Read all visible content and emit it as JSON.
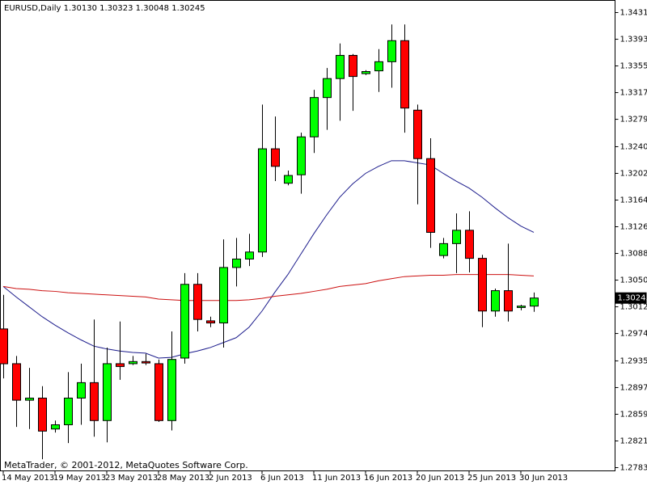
{
  "chart_data": {
    "type": "candlestick",
    "title": "EURUSD,Daily  1.30130 1.30323 1.30048 1.30245",
    "annotation": "MetaTrader, © 2001-2012, MetaQuotes Software Corp.",
    "categories": [
      "14 May 2013",
      null,
      null,
      null,
      "19 May 2013",
      null,
      null,
      null,
      "23 May 2013",
      null,
      null,
      null,
      "28 May 2013",
      null,
      null,
      null,
      "2 Jun 2013",
      null,
      null,
      null,
      "6 Jun 2013",
      null,
      null,
      null,
      "11 Jun 2013",
      null,
      null,
      null,
      "16 Jun 2013",
      null,
      null,
      null,
      "20 Jun 2013",
      null,
      null,
      null,
      "25 Jun 2013",
      null,
      null,
      null,
      "30 Jun 2013",
      null
    ],
    "open": [
      1.29805,
      1.2931,
      1.2879,
      1.2882,
      1.2838,
      1.2844,
      1.2882,
      1.2904,
      1.285,
      1.2931,
      1.2931,
      1.2934,
      1.2931,
      1.285,
      1.2939,
      1.3044,
      1.2992,
      1.2989,
      1.3068,
      1.308,
      1.309,
      1.3237,
      1.3188,
      1.32,
      1.3254,
      1.331,
      1.3337,
      1.337,
      1.3344,
      1.3348,
      1.3361,
      1.3391,
      1.3292,
      1.3223,
      1.3085,
      1.3102,
      1.3121,
      1.3081,
      1.3006,
      1.3035,
      1.3011,
      1.3013
    ],
    "high": [
      1.3029,
      1.2942,
      1.2925,
      1.2899,
      1.285,
      1.2919,
      1.2931,
      1.2994,
      1.2954,
      1.2991,
      1.2942,
      1.2945,
      1.2937,
      1.2977,
      1.306,
      1.306,
      1.2998,
      1.3108,
      1.311,
      1.3116,
      1.33,
      1.3283,
      1.3206,
      1.326,
      1.3321,
      1.3352,
      1.3387,
      1.3372,
      1.3349,
      1.3379,
      1.3414,
      1.3414,
      1.33,
      1.3252,
      1.311,
      1.3145,
      1.3148,
      1.3086,
      1.3038,
      1.3102,
      1.3015,
      1.30323
    ],
    "low": [
      1.291,
      1.2841,
      1.2838,
      1.2795,
      1.2833,
      1.2818,
      1.2844,
      1.2827,
      1.2819,
      1.2908,
      1.2929,
      1.2929,
      1.2848,
      1.2836,
      1.2931,
      1.2977,
      1.2983,
      1.2954,
      1.3041,
      1.307,
      1.3083,
      1.3191,
      1.3185,
      1.3173,
      1.3231,
      1.3264,
      1.3277,
      1.3291,
      1.3342,
      1.3318,
      1.3324,
      1.326,
      1.3158,
      1.3096,
      1.3081,
      1.306,
      1.3061,
      1.2983,
      1.2998,
      1.2991,
      1.3007,
      1.30048
    ],
    "close": [
      1.29309,
      1.2879,
      1.2882,
      1.2835,
      1.2844,
      1.2882,
      1.2904,
      1.285,
      1.2931,
      1.2927,
      1.2934,
      1.2932,
      1.285,
      1.2937,
      1.3044,
      1.2994,
      1.2989,
      1.3068,
      1.308,
      1.309,
      1.3237,
      1.3212,
      1.3199,
      1.3254,
      1.331,
      1.3337,
      1.337,
      1.334,
      1.3347,
      1.3361,
      1.3391,
      1.3295,
      1.3223,
      1.3118,
      1.3102,
      1.3121,
      1.3081,
      1.3006,
      1.3035,
      1.3006,
      1.3013,
      1.30245
    ],
    "up_color": "#00ff00",
    "down_color": "#ff0000",
    "lines": [
      {
        "color": "#1c1c8c",
        "values": [
          1.3041,
          1.3026,
          1.3012,
          1.2998,
          1.2986,
          1.2975,
          1.2965,
          1.2956,
          1.2952,
          1.2949,
          1.2947,
          1.2946,
          1.2939,
          1.294,
          1.2945,
          1.2949,
          1.2954,
          1.2961,
          1.2968,
          1.2983,
          1.3006,
          1.3033,
          1.3058,
          1.3087,
          1.3116,
          1.3143,
          1.3168,
          1.3187,
          1.3202,
          1.3212,
          1.322,
          1.322,
          1.3217,
          1.3214,
          1.3202,
          1.3191,
          1.3181,
          1.3168,
          1.3153,
          1.3139,
          1.3127,
          1.3118
        ]
      },
      {
        "color": "#cc1010",
        "values": [
          1.3041,
          1.3038,
          1.3037,
          1.3035,
          1.3034,
          1.3032,
          1.3031,
          1.303,
          1.3029,
          1.3028,
          1.3027,
          1.3026,
          1.3023,
          1.3022,
          1.3021,
          1.3021,
          1.3021,
          1.3021,
          1.3021,
          1.3022,
          1.3024,
          1.3027,
          1.3029,
          1.3031,
          1.3034,
          1.3037,
          1.3041,
          1.3043,
          1.3045,
          1.3049,
          1.3052,
          1.3055,
          1.3056,
          1.3057,
          1.3057,
          1.3058,
          1.3058,
          1.3058,
          1.3058,
          1.3058,
          1.3057,
          1.3056
        ]
      }
    ],
    "last_price": {
      "value": 1.30245,
      "label": "1.30245"
    },
    "ylim": [
      1.27784,
      1.34483
    ],
    "yticks": [
      {
        "value": 1.3431,
        "label": "1.34310"
      },
      {
        "value": 1.3393,
        "label": "1.33930"
      },
      {
        "value": 1.3355,
        "label": "1.33550"
      },
      {
        "value": 1.3317,
        "label": "1.33170"
      },
      {
        "value": 1.3279,
        "label": "1.32790"
      },
      {
        "value": 1.324,
        "label": "1.32400"
      },
      {
        "value": 1.3202,
        "label": "1.32020"
      },
      {
        "value": 1.3164,
        "label": "1.31640"
      },
      {
        "value": 1.3126,
        "label": "1.31260"
      },
      {
        "value": 1.3088,
        "label": "1.30880"
      },
      {
        "value": 1.305,
        "label": "1.30500"
      },
      {
        "value": 1.3012,
        "label": "1.30120"
      },
      {
        "value": 1.2974,
        "label": "1.29740"
      },
      {
        "value": 1.2935,
        "label": "1.29350"
      },
      {
        "value": 1.2897,
        "label": "1.28970"
      },
      {
        "value": 1.2859,
        "label": "1.28590"
      },
      {
        "value": 1.2821,
        "label": "1.28210"
      },
      {
        "value": 1.2783,
        "label": "1.27830"
      }
    ]
  }
}
